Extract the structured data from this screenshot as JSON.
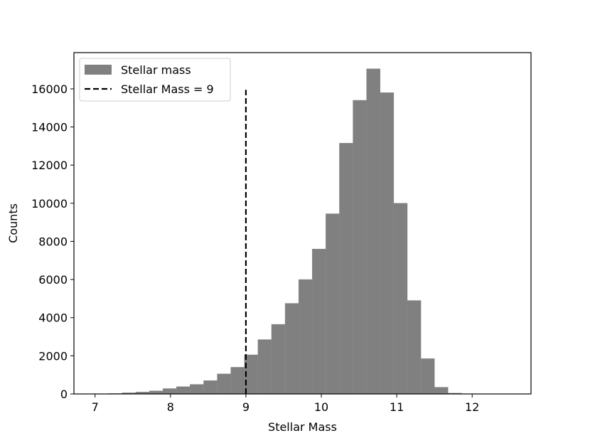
{
  "chart_data": {
    "type": "bar",
    "subtype": "histogram",
    "title": "",
    "xlabel": "Stellar Mass",
    "ylabel": "Counts",
    "xlim": [
      6.72,
      12.78
    ],
    "ylim": [
      0,
      17900
    ],
    "xticks": [
      7,
      8,
      9,
      10,
      11,
      12
    ],
    "yticks": [
      0,
      2000,
      4000,
      6000,
      8000,
      10000,
      12000,
      14000,
      16000
    ],
    "grid": false,
    "legend_position": "top-left",
    "series": [
      {
        "name": "Stellar mass",
        "kind": "histogram",
        "color": "#808080",
        "bin_edges": [
          7.0,
          7.18,
          7.36,
          7.54,
          7.72,
          7.9,
          8.08,
          8.26,
          8.44,
          8.62,
          8.8,
          8.98,
          9.16,
          9.34,
          9.52,
          9.7,
          9.88,
          10.06,
          10.24,
          10.42,
          10.6,
          10.78,
          10.96,
          11.14,
          11.32,
          11.5,
          11.68,
          11.86,
          12.04,
          12.22,
          12.4
        ],
        "values": [
          5,
          20,
          60,
          100,
          160,
          280,
          380,
          500,
          700,
          1050,
          1400,
          2050,
          2850,
          3650,
          4750,
          6000,
          7600,
          9450,
          13150,
          15400,
          17050,
          15800,
          10000,
          4900,
          1850,
          350,
          40,
          5,
          2,
          1
        ]
      },
      {
        "name": "Stellar Mass = 9",
        "kind": "vline",
        "color": "#000000",
        "linestyle": "dashed",
        "x": 9,
        "y_range": [
          0,
          15950
        ]
      }
    ]
  }
}
